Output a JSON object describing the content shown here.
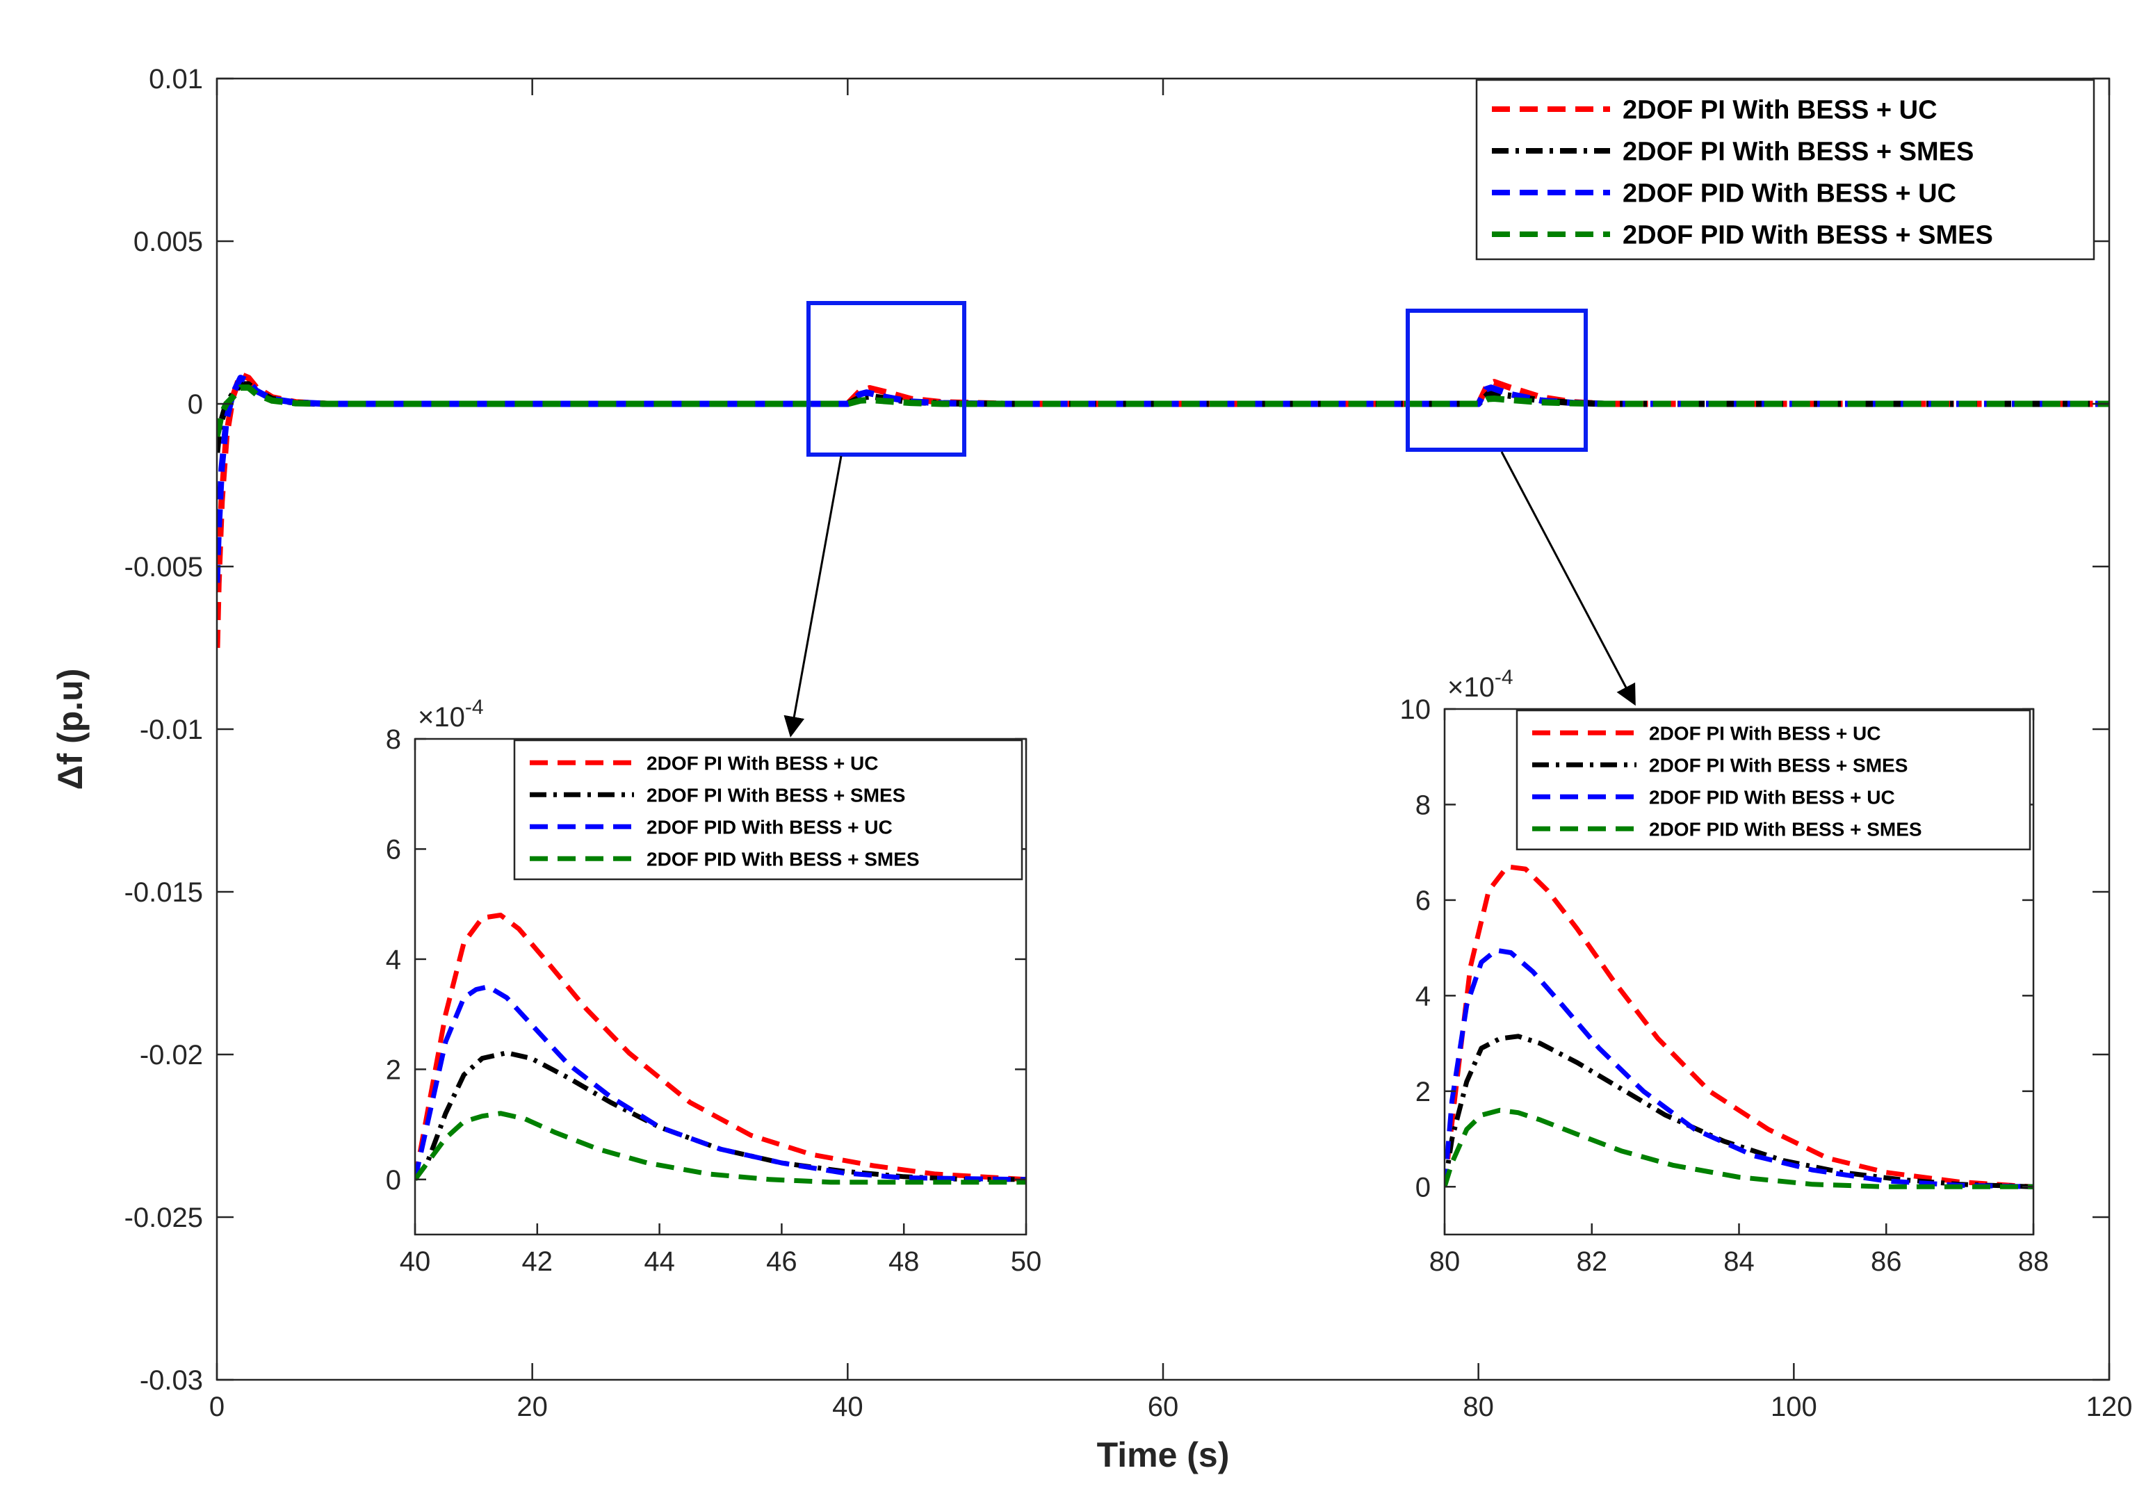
{
  "chart_data": [
    {
      "id": "main",
      "type": "line",
      "title": "",
      "xlabel": "Time (s)",
      "ylabel": "Δf (p.u)",
      "xlim": [
        0,
        120
      ],
      "ylim": [
        -0.03,
        0.01
      ],
      "xticks": [
        0,
        20,
        40,
        60,
        80,
        100,
        120
      ],
      "xtick_labels": [
        "0",
        "20",
        "40",
        "60",
        "80",
        "100",
        "120"
      ],
      "yticks": [
        0.01,
        0.005,
        0,
        -0.005,
        -0.01,
        -0.015,
        -0.02,
        -0.025,
        -0.03
      ],
      "ytick_labels": [
        "0.01",
        "0.005",
        "0",
        "-0.005",
        "-0.01",
        "-0.015",
        "-0.02",
        "-0.025",
        "-0.03"
      ],
      "legend_position": "top-right",
      "series": [
        {
          "name": "2DOF PI With BESS + UC",
          "color": "#ff0000",
          "style": "dashed",
          "x": [
            0,
            0.1,
            0.3,
            0.6,
            1.0,
            1.5,
            2.0,
            2.5,
            3.5,
            5,
            7,
            10,
            40,
            40.8,
            41.4,
            42.5,
            44,
            46,
            50,
            80,
            80.6,
            81,
            82,
            84,
            86,
            88,
            120
          ],
          "y": [
            -0.0075,
            -0.0055,
            -0.003,
            -0.001,
            0.0002,
            0.0009,
            0.0008,
            0.0005,
            0.0002,
            5e-05,
            0,
            0,
            0,
            0.0004,
            0.00048,
            0.00035,
            0.00015,
            5e-05,
            0,
            0,
            0.0006,
            0.00067,
            0.0005,
            0.0002,
            5e-05,
            0,
            0
          ]
        },
        {
          "name": "2DOF PI With BESS + SMES",
          "color": "#000000",
          "style": "dashdot",
          "x": [
            0,
            0.1,
            0.3,
            0.6,
            1.0,
            1.5,
            2.0,
            2.5,
            3.5,
            5,
            7,
            10,
            40,
            40.8,
            41.5,
            42.5,
            44,
            46,
            50,
            80,
            80.6,
            81,
            82,
            84,
            86,
            88,
            120
          ],
          "y": [
            -0.0015,
            -0.001,
            -0.0005,
            0,
            0.0003,
            0.0006,
            0.0006,
            0.0004,
            0.00015,
            3e-05,
            0,
            0,
            0,
            0.0002,
            0.00023,
            0.00016,
            6e-05,
            2e-05,
            0,
            0,
            0.0003,
            0.00031,
            0.00025,
            0.0001,
            3e-05,
            0,
            0
          ]
        },
        {
          "name": "2DOF PID With BESS + UC",
          "color": "#0000ff",
          "style": "dashed",
          "x": [
            0,
            0.1,
            0.3,
            0.6,
            1.0,
            1.5,
            2.0,
            2.5,
            3.5,
            5,
            7,
            10,
            40,
            40.8,
            41.2,
            42.5,
            44,
            46,
            50,
            80,
            80.5,
            80.8,
            82,
            84,
            86,
            88,
            120
          ],
          "y": [
            -0.0055,
            -0.004,
            -0.002,
            -0.0005,
            0.0003,
            0.0008,
            0.0007,
            0.0004,
            0.00015,
            4e-05,
            0,
            0,
            0,
            0.0003,
            0.00035,
            0.0002,
            7e-05,
            2e-05,
            0,
            0,
            0.00045,
            0.0005,
            0.0003,
            0.0001,
            3e-05,
            0,
            0
          ]
        },
        {
          "name": "2DOF PID With BESS + SMES",
          "color": "#008000",
          "style": "dashed",
          "x": [
            0,
            0.1,
            0.3,
            0.6,
            1.0,
            1.5,
            2.0,
            2.5,
            3.5,
            5,
            7,
            10,
            40,
            40.8,
            41.4,
            42.5,
            44,
            46,
            50,
            80,
            80.6,
            81,
            82,
            84,
            86,
            88,
            120
          ],
          "y": [
            -0.001,
            -0.0008,
            -0.0003,
            0,
            0.0002,
            0.0005,
            0.0005,
            0.0003,
            0.0001,
            2e-05,
            0,
            0,
            0,
            0.0001,
            0.00012,
            8e-05,
            3e-05,
            0,
            0,
            0,
            0.00015,
            0.00016,
            0.00012,
            5e-05,
            2e-05,
            0,
            0
          ]
        }
      ],
      "annotations": [
        "zoom-box-40s",
        "zoom-box-80s"
      ]
    },
    {
      "id": "inset1",
      "type": "line",
      "title": "",
      "xlabel": "",
      "ylabel": "",
      "exponent_label": "×10",
      "exponent_power": "-4",
      "xlim": [
        40,
        50
      ],
      "ylim": [
        -1,
        8
      ],
      "xticks": [
        40,
        42,
        44,
        46,
        48,
        50
      ],
      "xtick_labels": [
        "40",
        "42",
        "44",
        "46",
        "48",
        "50"
      ],
      "yticks": [
        8,
        6,
        4,
        2,
        0
      ],
      "ytick_labels": [
        "8",
        "6",
        "4",
        "2",
        "0"
      ],
      "legend_position": "top-right",
      "series": [
        {
          "name": "2DOF PI With BESS + UC",
          "color": "#ff0000",
          "style": "dashed",
          "x": [
            40,
            40.2,
            40.5,
            40.8,
            41.1,
            41.4,
            41.7,
            42.2,
            42.8,
            43.5,
            44.5,
            45.5,
            46.5,
            47.5,
            48.5,
            50
          ],
          "y": [
            0,
            1.2,
            3.0,
            4.3,
            4.75,
            4.8,
            4.55,
            3.9,
            3.1,
            2.3,
            1.4,
            0.8,
            0.45,
            0.25,
            0.1,
            0
          ]
        },
        {
          "name": "2DOF PI With BESS + SMES",
          "color": "#000000",
          "style": "dashdot",
          "x": [
            40,
            40.2,
            40.5,
            40.8,
            41.1,
            41.5,
            41.9,
            42.5,
            43.2,
            44,
            45,
            46,
            47,
            48,
            49,
            50
          ],
          "y": [
            0,
            0.3,
            1.2,
            1.9,
            2.2,
            2.3,
            2.2,
            1.85,
            1.4,
            0.95,
            0.55,
            0.3,
            0.15,
            0.05,
            0,
            0
          ]
        },
        {
          "name": "2DOF PID With BESS + UC",
          "color": "#0000ff",
          "style": "dashed",
          "x": [
            40,
            40.2,
            40.5,
            40.8,
            41.0,
            41.2,
            41.5,
            42.0,
            42.5,
            43.2,
            44,
            45,
            46,
            47,
            48,
            50
          ],
          "y": [
            0,
            1.0,
            2.5,
            3.3,
            3.45,
            3.5,
            3.3,
            2.7,
            2.1,
            1.5,
            0.95,
            0.55,
            0.3,
            0.12,
            0.03,
            0
          ]
        },
        {
          "name": "2DOF PID With BESS + SMES",
          "color": "#008000",
          "style": "dashed",
          "x": [
            40,
            40.2,
            40.5,
            40.8,
            41.1,
            41.4,
            41.8,
            42.3,
            43,
            43.8,
            44.8,
            45.8,
            46.8,
            48,
            50
          ],
          "y": [
            0,
            0.3,
            0.75,
            1.05,
            1.15,
            1.2,
            1.1,
            0.85,
            0.55,
            0.3,
            0.1,
            0.0,
            -0.05,
            -0.05,
            -0.05
          ]
        }
      ]
    },
    {
      "id": "inset2",
      "type": "line",
      "title": "",
      "xlabel": "",
      "ylabel": "",
      "exponent_label": "×10",
      "exponent_power": "-4",
      "xlim": [
        80,
        88
      ],
      "ylim": [
        -1,
        10
      ],
      "xticks": [
        80,
        82,
        84,
        86,
        88
      ],
      "xtick_labels": [
        "80",
        "82",
        "84",
        "86",
        "88"
      ],
      "yticks": [
        10,
        8,
        6,
        4,
        2,
        0
      ],
      "ytick_labels": [
        "10",
        "8",
        "6",
        "4",
        "2",
        "0"
      ],
      "legend_position": "top-right",
      "series": [
        {
          "name": "2DOF PI With BESS + UC",
          "color": "#ff0000",
          "style": "dashed",
          "x": [
            80,
            80.15,
            80.35,
            80.6,
            80.85,
            81.1,
            81.4,
            81.8,
            82.3,
            82.9,
            83.6,
            84.4,
            85.2,
            86,
            87,
            88
          ],
          "y": [
            0,
            2.0,
            4.6,
            6.2,
            6.7,
            6.65,
            6.2,
            5.4,
            4.3,
            3.1,
            2.0,
            1.2,
            0.6,
            0.3,
            0.1,
            0
          ]
        },
        {
          "name": "2DOF PI With BESS + SMES",
          "color": "#000000",
          "style": "dashdot",
          "x": [
            80,
            80.1,
            80.3,
            80.5,
            80.75,
            81.0,
            81.3,
            81.8,
            82.4,
            83,
            83.8,
            84.6,
            85.4,
            86.2,
            87,
            88
          ],
          "y": [
            0,
            1.0,
            2.2,
            2.9,
            3.1,
            3.15,
            3.0,
            2.6,
            2.05,
            1.5,
            0.95,
            0.55,
            0.3,
            0.15,
            0.05,
            0
          ]
        },
        {
          "name": "2DOF PID With BESS + UC",
          "color": "#0000ff",
          "style": "dashed",
          "x": [
            80,
            80.1,
            80.3,
            80.5,
            80.7,
            80.9,
            81.2,
            81.6,
            82.1,
            82.7,
            83.4,
            84.2,
            85,
            86,
            87,
            88
          ],
          "y": [
            0,
            1.8,
            3.8,
            4.7,
            4.95,
            4.9,
            4.5,
            3.8,
            2.9,
            2.0,
            1.2,
            0.65,
            0.35,
            0.12,
            0.03,
            0
          ]
        },
        {
          "name": "2DOF PID With BESS + SMES",
          "color": "#008000",
          "style": "dashed",
          "x": [
            80,
            80.1,
            80.3,
            80.5,
            80.75,
            81.0,
            81.3,
            81.8,
            82.4,
            83.1,
            84,
            85,
            86,
            87,
            88
          ],
          "y": [
            0,
            0.5,
            1.2,
            1.5,
            1.6,
            1.55,
            1.4,
            1.1,
            0.75,
            0.45,
            0.2,
            0.05,
            0,
            0,
            0
          ]
        }
      ]
    }
  ]
}
